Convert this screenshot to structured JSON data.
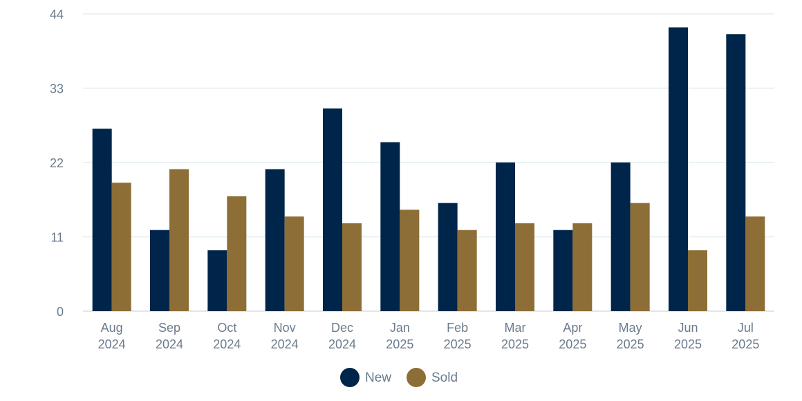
{
  "chart_data": {
    "type": "bar",
    "categories": [
      [
        "Aug",
        "2024"
      ],
      [
        "Sep",
        "2024"
      ],
      [
        "Oct",
        "2024"
      ],
      [
        "Nov",
        "2024"
      ],
      [
        "Dec",
        "2024"
      ],
      [
        "Jan",
        "2025"
      ],
      [
        "Feb",
        "2025"
      ],
      [
        "Mar",
        "2025"
      ],
      [
        "Apr",
        "2025"
      ],
      [
        "May",
        "2025"
      ],
      [
        "Jun",
        "2025"
      ],
      [
        "Jul",
        "2025"
      ]
    ],
    "series": [
      {
        "name": "New",
        "color": "#00254a",
        "values": [
          27,
          12,
          9,
          21,
          30,
          25,
          16,
          22,
          12,
          22,
          42,
          41
        ]
      },
      {
        "name": "Sold",
        "color": "#8c6e36",
        "values": [
          19,
          21,
          17,
          14,
          13,
          15,
          12,
          13,
          13,
          16,
          9,
          14
        ]
      }
    ],
    "yticks": [
      0,
      11,
      22,
      33,
      44
    ],
    "ylim": [
      0,
      44
    ],
    "grid": true,
    "legend": "bottom-center"
  }
}
